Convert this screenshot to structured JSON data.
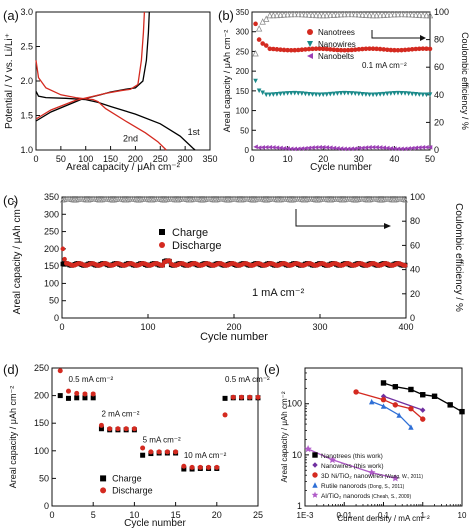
{
  "chart_data": [
    {
      "panel": "(a)",
      "type": "line",
      "xlabel": "Areal capacity / μAh cm⁻²",
      "ylabel": "Potential / V vs. Li/Li⁺",
      "xlim": [
        0,
        350
      ],
      "ylim": [
        1.0,
        3.0
      ],
      "xticks": [
        "0",
        "50",
        "100",
        "150",
        "200",
        "250",
        "300",
        "350"
      ],
      "yticks": [
        "1.0",
        "1.5",
        "2.0",
        "2.5",
        "3.0"
      ],
      "annotations": [
        "1st",
        "2nd"
      ],
      "series": [
        {
          "name": "1st",
          "color": "#000000",
          "role": "discharge",
          "x": [
            0,
            5,
            20,
            60,
            100,
            125,
            150,
            200,
            250,
            290,
            305,
            315,
            320
          ],
          "y": [
            1.85,
            1.78,
            1.76,
            1.75,
            1.73,
            1.69,
            1.63,
            1.52,
            1.38,
            1.2,
            1.1,
            1.03,
            1.0
          ]
        },
        {
          "name": "1st",
          "color": "#000000",
          "role": "charge",
          "x": [
            0,
            30,
            90,
            130,
            150,
            180,
            200,
            215,
            222,
            226,
            228
          ],
          "y": [
            1.42,
            1.55,
            1.73,
            1.8,
            1.84,
            1.88,
            1.9,
            2.0,
            2.3,
            2.7,
            3.0
          ]
        },
        {
          "name": "2nd",
          "color": "#d42a20",
          "role": "discharge",
          "x": [
            0,
            5,
            20,
            50,
            80,
            100,
            115,
            125,
            140,
            180,
            220,
            245,
            255,
            262
          ],
          "y": [
            2.3,
            2.05,
            1.9,
            1.8,
            1.76,
            1.74,
            1.73,
            1.7,
            1.6,
            1.42,
            1.25,
            1.12,
            1.05,
            1.0
          ]
        },
        {
          "name": "2nd",
          "color": "#d42a20",
          "role": "charge",
          "x": [
            0,
            30,
            80,
            110,
            140,
            170,
            190,
            205,
            212,
            216,
            218
          ],
          "y": [
            1.45,
            1.58,
            1.72,
            1.77,
            1.82,
            1.86,
            1.88,
            1.95,
            2.3,
            2.7,
            3.0
          ]
        }
      ]
    },
    {
      "panel": "(b)",
      "type": "scatter",
      "xlabel": "Cycle number",
      "ylabel": "Areal capacity / μAh cm⁻²",
      "ylabel_right": "Coulombic efficiency / %",
      "xlim": [
        0,
        50
      ],
      "ylim": [
        0,
        350
      ],
      "ylim_right": [
        0,
        100
      ],
      "xticks": [
        "0",
        "10",
        "20",
        "30",
        "40",
        "50"
      ],
      "yticks": [
        "0",
        "50",
        "100",
        "150",
        "200",
        "250",
        "300",
        "350"
      ],
      "yticks_right": [
        "0",
        "20",
        "40",
        "60",
        "80",
        "100"
      ],
      "annotation": "0.1 mA cm⁻²",
      "legend": [
        "Nanotrees",
        "Nanowires",
        "Nanobelts"
      ],
      "series": [
        {
          "name": "Nanotrees",
          "color": "#d42a20",
          "marker": "circle",
          "first": [
            320,
            280,
            270,
            265
          ],
          "plateau": 255
        },
        {
          "name": "Nanowires",
          "color": "#1a8a8a",
          "marker": "triangle-down",
          "first": [
            175,
            150,
            145
          ],
          "plateau": 142
        },
        {
          "name": "Nanobelts",
          "color": "#9b3fb5",
          "marker": "triangle-left",
          "first": [
            8
          ],
          "plateau": 5
        },
        {
          "name": "Coulombic efficiency",
          "color": "#888888",
          "marker": "triangle-open",
          "axis": "right",
          "first": [
            70,
            88,
            93,
            95
          ],
          "plateau": 98
        }
      ]
    },
    {
      "panel": "(c)",
      "type": "scatter",
      "xlabel": "Cycle number",
      "ylabel": "Areal capacity / μAh cm⁻²",
      "ylabel_right": "Coulombic efficiency / %",
      "xlim": [
        0,
        400
      ],
      "ylim": [
        0,
        350
      ],
      "ylim_right": [
        0,
        100
      ],
      "xticks": [
        "0",
        "100",
        "200",
        "300",
        "400"
      ],
      "yticks": [
        "0",
        "50",
        "100",
        "150",
        "200",
        "250",
        "300",
        "350"
      ],
      "yticks_right": [
        "0",
        "20",
        "40",
        "60",
        "80",
        "100"
      ],
      "annotation": "1 mA cm⁻²",
      "legend": [
        "Charge",
        "Discharge"
      ],
      "series": [
        {
          "name": "Charge",
          "color": "#000000",
          "marker": "square",
          "plateau": 155
        },
        {
          "name": "Discharge",
          "color": "#d42a20",
          "marker": "circle",
          "first": [
            200,
            170
          ],
          "plateau": 155
        },
        {
          "name": "Coulombic efficiency",
          "color": "#888888",
          "marker": "triangle-open",
          "axis": "right",
          "plateau": 98
        }
      ]
    },
    {
      "panel": "(d)",
      "type": "scatter",
      "xlabel": "Cycle number",
      "ylabel": "Areal capacity / μAh cm⁻²",
      "xlim": [
        0,
        25
      ],
      "ylim": [
        0,
        250
      ],
      "xticks": [
        "0",
        "5",
        "10",
        "15",
        "20",
        "25"
      ],
      "yticks": [
        "0",
        "50",
        "100",
        "150",
        "200",
        "250"
      ],
      "annotations": [
        "0.5 mA cm⁻²",
        "2 mA cm⁻²",
        "5 mA cm⁻²",
        "10 mA cm⁻²",
        "0.5 mA cm⁻²"
      ],
      "legend": [
        "Charge",
        "Discharge"
      ],
      "series": [
        {
          "name": "Charge",
          "color": "#000000",
          "marker": "square",
          "x": [
            1,
            2,
            3,
            4,
            5,
            6,
            7,
            8,
            9,
            10,
            11,
            12,
            13,
            14,
            15,
            16,
            17,
            18,
            19,
            20,
            21,
            22,
            23,
            24,
            25
          ],
          "y": [
            200,
            195,
            196,
            196,
            196,
            140,
            138,
            138,
            138,
            138,
            92,
            95,
            96,
            96,
            96,
            67,
            67,
            68,
            68,
            68,
            195,
            196,
            196,
            196,
            196
          ]
        },
        {
          "name": "Discharge",
          "color": "#d42a20",
          "marker": "circle",
          "x": [
            1,
            2,
            3,
            4,
            5,
            6,
            7,
            8,
            9,
            10,
            11,
            12,
            13,
            14,
            15,
            16,
            17,
            18,
            19,
            20,
            21,
            22,
            23,
            24,
            25
          ],
          "y": [
            245,
            208,
            204,
            203,
            203,
            146,
            140,
            140,
            140,
            140,
            105,
            98,
            98,
            98,
            98,
            72,
            70,
            70,
            70,
            70,
            165,
            197,
            197,
            197,
            197
          ]
        }
      ]
    },
    {
      "panel": "(e)",
      "type": "line",
      "xscale": "log",
      "yscale": "log",
      "xlabel": "Current density / mA cm⁻²",
      "ylabel": "Areal capacity / μAh cm⁻²",
      "xlim": [
        0.001,
        10
      ],
      "ylim": [
        1,
        500
      ],
      "xticks": [
        "1E-3",
        "0.01",
        "0.1",
        "1",
        "10"
      ],
      "yticks": [
        "1",
        "10",
        "100"
      ],
      "series": [
        {
          "name": "Nanotrees (this work)",
          "color": "#000000",
          "marker": "square",
          "x": [
            0.1,
            0.2,
            0.5,
            1,
            2,
            5,
            10
          ],
          "y": [
            255,
            215,
            190,
            150,
            140,
            95,
            70
          ]
        },
        {
          "name": "Nanowires (this work)",
          "color": "#7030a0",
          "marker": "diamond",
          "x": [
            0.1,
            1
          ],
          "y": [
            140,
            75
          ]
        },
        {
          "name": "3D Ni/TiO₂ nanowires",
          "citation": "(Wang, W., 2011)",
          "color": "#d42a20",
          "marker": "circle",
          "x": [
            0.02,
            0.1,
            0.2,
            0.5,
            1
          ],
          "y": [
            170,
            120,
            95,
            80,
            50
          ]
        },
        {
          "name": "Rutile nanorods",
          "citation": "(Dong, S., 2011)",
          "color": "#2e6fd6",
          "marker": "triangle",
          "x": [
            0.05,
            0.1,
            0.25,
            0.5
          ],
          "y": [
            110,
            90,
            60,
            35
          ]
        },
        {
          "name": "Al/TiO₂ nanorods",
          "citation": "(Cheah, S., 2009)",
          "color": "#b05bc8",
          "marker": "star",
          "x": [
            0.0012,
            0.005,
            0.05,
            0.2
          ],
          "y": [
            13,
            8,
            4.5,
            3.5
          ]
        }
      ]
    }
  ]
}
